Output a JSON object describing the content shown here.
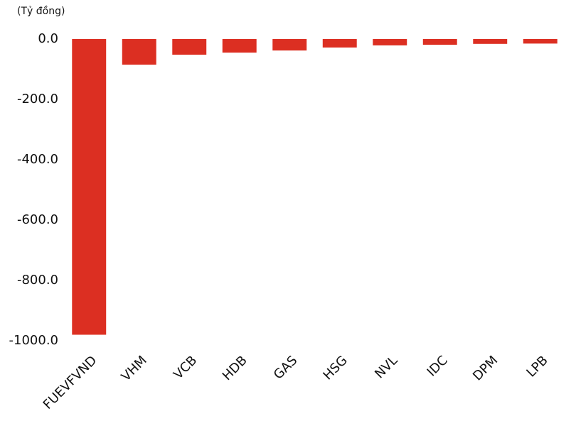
{
  "chart_data": {
    "type": "bar",
    "y_label": "(Tỷ đồng)",
    "categories": [
      "FUEVFVND",
      "VHM",
      "VCB",
      "HDB",
      "GAS",
      "HSG",
      "NVL",
      "IDC",
      "DPM",
      "LPB"
    ],
    "values": [
      -980,
      -85,
      -52,
      -45,
      -38,
      -28,
      -21,
      -19,
      -16,
      -15
    ],
    "color": "#dc2f22",
    "ylim": [
      -1000,
      0
    ],
    "yticks": [
      {
        "value": 0,
        "label": "0.0"
      },
      {
        "value": -200,
        "label": "-200.0"
      },
      {
        "value": -400,
        "label": "-400.0"
      },
      {
        "value": -600,
        "label": "-600.0"
      },
      {
        "value": -800,
        "label": "-800.0"
      },
      {
        "value": -1000,
        "label": "-1000.0"
      }
    ],
    "grid": false
  }
}
